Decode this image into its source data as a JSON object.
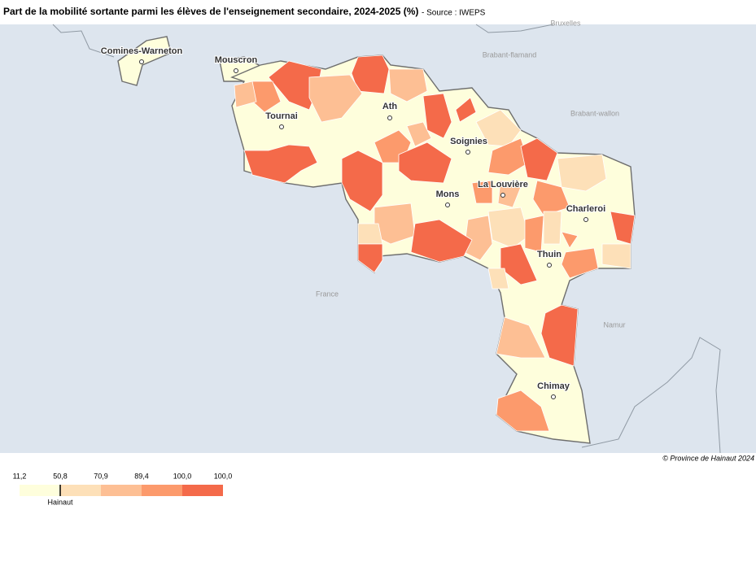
{
  "title": "Part de la mobilité sortante parmi les élèves de l'enseignement secondaire, 2024-2025 (%)",
  "source": "- Source : IWEPS",
  "copyright": "© Province de Hainaut 2024",
  "map": {
    "cities": [
      "Comines-Warneton",
      "Mouscron",
      "Tournai",
      "Ath",
      "Soignies",
      "Mons",
      "La Louvière",
      "Charleroi",
      "Thuin",
      "Chimay"
    ],
    "regions": [
      "Bruxelles",
      "Brabant-flamand",
      "Brabant-wallon",
      "France",
      "Namur"
    ]
  },
  "legend": {
    "breaks": [
      {
        "value": 11.2,
        "label": "11,2"
      },
      {
        "value": 50.8,
        "label": "50,8"
      },
      {
        "value": 70.9,
        "label": "70,9"
      },
      {
        "value": 89.4,
        "label": "89,4"
      },
      {
        "value": 100.0,
        "label": "100,0"
      },
      {
        "value": 100.0,
        "label": "100,0"
      }
    ],
    "colors": [
      "#fefedc",
      "#fde0b8",
      "#fdbf94",
      "#fc9a6c",
      "#f46a4a"
    ],
    "reference": {
      "label": "Hainaut",
      "value": 50.8
    }
  }
}
